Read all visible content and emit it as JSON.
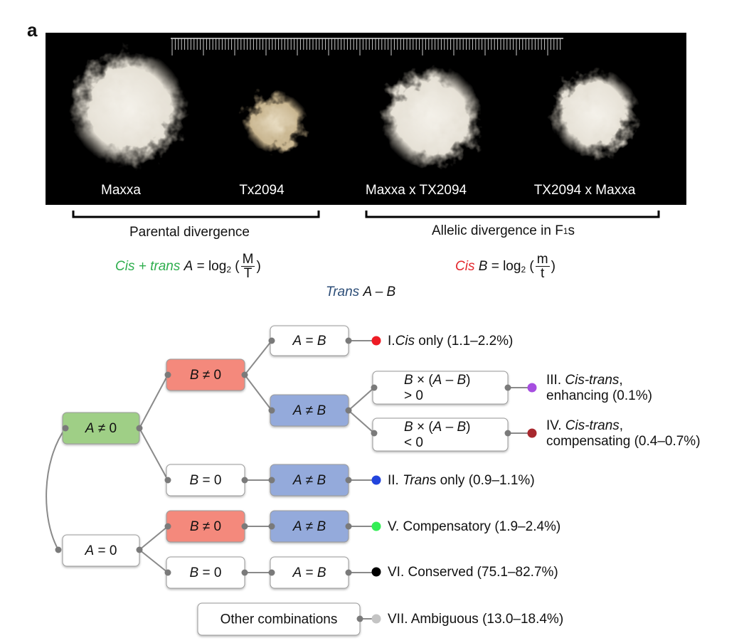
{
  "panel_label": "a",
  "photo": {
    "labels": [
      "Maxxa",
      "Tx2094",
      "Maxxa x TX2094",
      "TX2094 x Maxxa"
    ]
  },
  "brackets": {
    "parental": "Parental divergence",
    "allelic": {
      "text": "Allelic divergence in F",
      "sub": "1",
      "tail": "s"
    }
  },
  "formulas": {
    "cis_trans": {
      "label": "Cis + trans",
      "color": "#2fae4e",
      "var": "A",
      "eq": " = log",
      "base": "2",
      "open": " (",
      "num": "M",
      "den": "T",
      "close": ")"
    },
    "cis": {
      "label": "Cis",
      "color": "#e3262c",
      "var": "B",
      "eq": " = log",
      "base": "2",
      "open": " (",
      "num": "m",
      "den": "t",
      "close": ")"
    },
    "trans": {
      "label": "Trans",
      "color": "#2d4e78",
      "expr": "A – B"
    }
  },
  "nodes": [
    {
      "fill": "#9fcf86",
      "lines": [
        [
          {
            "text": "A",
            "italic": true
          },
          {
            "text": " ≠ 0"
          }
        ]
      ]
    },
    {
      "fill": "#ffffff",
      "lines": [
        [
          {
            "text": "A",
            "italic": true
          },
          {
            "text": " = 0"
          }
        ]
      ]
    },
    {
      "fill": "#f4897c",
      "lines": [
        [
          {
            "text": "B",
            "italic": true
          },
          {
            "text": " ≠ 0"
          }
        ]
      ]
    },
    {
      "fill": "#ffffff",
      "lines": [
        [
          {
            "text": "B",
            "italic": true
          },
          {
            "text": " = 0"
          }
        ]
      ]
    },
    {
      "fill": "#f4897c",
      "lines": [
        [
          {
            "text": "B",
            "italic": true
          },
          {
            "text": " ≠ 0"
          }
        ]
      ]
    },
    {
      "fill": "#ffffff",
      "lines": [
        [
          {
            "text": "B",
            "italic": true
          },
          {
            "text": " = 0"
          }
        ]
      ]
    },
    {
      "fill": "#ffffff",
      "lines": [
        [
          {
            "text": "A",
            "italic": true
          },
          {
            "text": " = "
          },
          {
            "text": "B",
            "italic": true
          }
        ]
      ]
    },
    {
      "fill": "#94aadb",
      "lines": [
        [
          {
            "text": "A",
            "italic": true
          },
          {
            "text": " ≠ "
          },
          {
            "text": "B",
            "italic": true
          }
        ]
      ]
    },
    {
      "fill": "#94aadb",
      "lines": [
        [
          {
            "text": "A",
            "italic": true
          },
          {
            "text": " ≠ "
          },
          {
            "text": "B",
            "italic": true
          }
        ]
      ]
    },
    {
      "fill": "#94aadb",
      "lines": [
        [
          {
            "text": "A",
            "italic": true
          },
          {
            "text": " ≠ "
          },
          {
            "text": "B",
            "italic": true
          }
        ]
      ]
    },
    {
      "fill": "#ffffff",
      "lines": [
        [
          {
            "text": "A",
            "italic": true
          },
          {
            "text": " = "
          },
          {
            "text": "B",
            "italic": true
          }
        ]
      ]
    },
    {
      "fill": "#ffffff",
      "lines": [
        [
          {
            "text": "B",
            "italic": true
          },
          {
            "text": " × ("
          },
          {
            "text": "A",
            "italic": true
          },
          {
            "text": " – "
          },
          {
            "text": "B",
            "italic": true
          },
          {
            "text": ")"
          }
        ],
        [
          {
            "text": "> 0"
          }
        ]
      ]
    },
    {
      "fill": "#ffffff",
      "lines": [
        [
          {
            "text": "B",
            "italic": true
          },
          {
            "text": " × ("
          },
          {
            "text": "A",
            "italic": true
          },
          {
            "text": " – "
          },
          {
            "text": "B",
            "italic": true
          },
          {
            "text": ")"
          }
        ],
        [
          {
            "text": "< 0"
          }
        ]
      ]
    },
    {
      "fill": "#ffffff",
      "lines": [
        [
          {
            "text": "Other combinations"
          }
        ]
      ]
    }
  ],
  "outcomes": [
    {
      "color": "#ee1c25",
      "lines": [
        [
          {
            "text": "I."
          },
          {
            "text": "Cis",
            "italic": true
          },
          {
            "text": " only (1.1–2.2%)"
          }
        ]
      ]
    },
    {
      "color": "#2244dd",
      "lines": [
        [
          {
            "text": "II. "
          },
          {
            "text": "Tran",
            "italic": true
          },
          {
            "text": "s only (0.9–1.1%)"
          }
        ]
      ]
    },
    {
      "color": "#a64ee0",
      "lines": [
        [
          {
            "text": "III. "
          },
          {
            "text": "Cis-trans",
            "italic": true
          },
          {
            "text": ","
          }
        ],
        [
          {
            "text": "enhancing (0.1%)"
          }
        ]
      ]
    },
    {
      "color": "#a8282e",
      "lines": [
        [
          {
            "text": "IV. "
          },
          {
            "text": "Cis-trans",
            "italic": true
          },
          {
            "text": ","
          }
        ],
        [
          {
            "text": "compensating (0.4–0.7%)"
          }
        ]
      ]
    },
    {
      "color": "#33ee55",
      "lines": [
        [
          {
            "text": "V. Compensatory (1.9–2.4%)"
          }
        ]
      ]
    },
    {
      "color": "#000000",
      "lines": [
        [
          {
            "text": "VI. Conserved (75.1–82.7%)"
          }
        ]
      ]
    },
    {
      "color": "#c4c4c4",
      "lines": [
        [
          {
            "text": "VII. Ambiguous (13.0–18.4%)"
          }
        ]
      ]
    }
  ]
}
